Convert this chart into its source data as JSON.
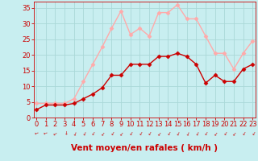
{
  "x": [
    0,
    1,
    2,
    3,
    4,
    5,
    6,
    7,
    8,
    9,
    10,
    11,
    12,
    13,
    14,
    15,
    16,
    17,
    18,
    19,
    20,
    21,
    22,
    23
  ],
  "wind_avg": [
    2.5,
    4,
    4,
    4,
    4.5,
    6,
    7.5,
    9.5,
    13.5,
    13.5,
    17,
    17,
    17,
    19.5,
    19.5,
    20.5,
    19.5,
    17,
    11,
    13.5,
    11.5,
    11.5,
    15.5,
    17
  ],
  "wind_gust": [
    4.5,
    4.5,
    4.5,
    4.5,
    6,
    11.5,
    17,
    22.5,
    28.5,
    34,
    26.5,
    28.5,
    26,
    33.5,
    33.5,
    36,
    31.5,
    31.5,
    26,
    20.5,
    20.5,
    15.5,
    20.5,
    24.5
  ],
  "avg_color": "#cc0000",
  "gust_color": "#ffaaaa",
  "background_color": "#c8eef0",
  "grid_color": "#aad8d8",
  "xlabel": "Vent moyen/en rafales ( km/h )",
  "ylim": [
    0,
    37
  ],
  "xlim": [
    -0.3,
    23.3
  ],
  "yticks": [
    0,
    5,
    10,
    15,
    20,
    25,
    30,
    35
  ],
  "xticks": [
    0,
    1,
    2,
    3,
    4,
    5,
    6,
    7,
    8,
    9,
    10,
    11,
    12,
    13,
    14,
    15,
    16,
    17,
    18,
    19,
    20,
    21,
    22,
    23
  ],
  "tick_color": "#cc0000",
  "xlabel_color": "#cc0000",
  "xlabel_fontsize": 7.5,
  "tick_fontsize": 6,
  "marker": "D",
  "marker_size": 2.5,
  "line_width": 1.0,
  "arrow_angles": [
    200,
    200,
    215,
    270,
    250,
    245,
    240,
    235,
    240,
    235,
    240,
    240,
    240,
    235,
    240,
    245,
    250,
    245,
    240,
    235,
    240,
    235,
    240,
    240
  ]
}
